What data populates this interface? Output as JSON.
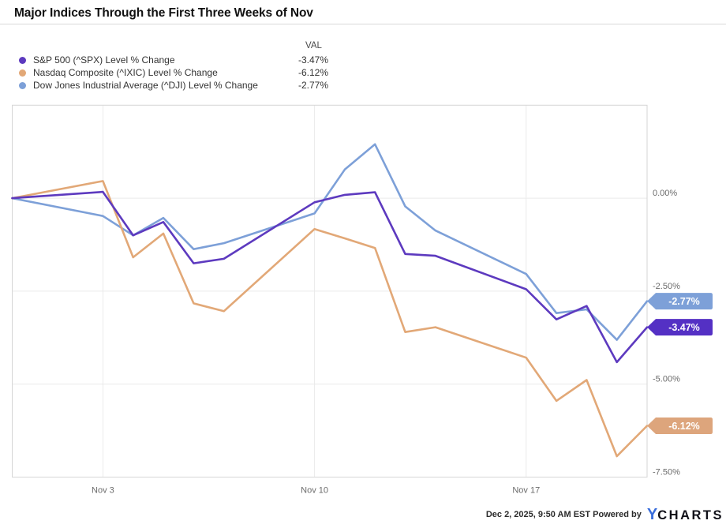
{
  "title": "Major Indices Through the First Three Weeks of Nov",
  "legend": {
    "val_header": "VAL"
  },
  "footer": {
    "text": "Dec 2, 2025, 9:50 AM EST Powered by",
    "logo_y": "Y",
    "logo_charts": "CHARTS"
  },
  "colors": {
    "gridline": "#eaeaea",
    "plot_border": "#d6d6d6",
    "tick_label": "#6b6b6b",
    "spx_purple": "#5d3abf",
    "ixic_orange": "#e2a877",
    "dji_blue": "#7da0d8"
  },
  "chart_data": {
    "type": "line",
    "title": "Major Indices Through the First Three Weeks of Nov",
    "x": [
      "Oct 31",
      "Nov 3",
      "Nov 4",
      "Nov 5",
      "Nov 6",
      "Nov 7",
      "Nov 10",
      "Nov 11",
      "Nov 12",
      "Nov 13",
      "Nov 14",
      "Nov 17",
      "Nov 18",
      "Nov 19",
      "Nov 20",
      "Nov 21"
    ],
    "day_offsets": [
      0,
      3,
      4,
      5,
      6,
      7,
      10,
      11,
      12,
      13,
      14,
      17,
      18,
      19,
      20,
      21
    ],
    "ylabel": "Level % Change",
    "ylim": [
      -7.5,
      2.5
    ],
    "grid": true,
    "legend_position": "top-left",
    "y_ticks": [
      {
        "label": "0.00%",
        "value": 0
      },
      {
        "label": "-2.50%",
        "value": -2.5
      },
      {
        "label": "-5.00%",
        "value": -5
      },
      {
        "label": "-7.50%",
        "value": -7.5
      }
    ],
    "x_ticks": [
      {
        "label": "Nov 3",
        "day": 3
      },
      {
        "label": "Nov 10",
        "day": 10
      },
      {
        "label": "Nov 17",
        "day": 17
      }
    ],
    "series": [
      {
        "id": "spx",
        "name": "S&P 500 (^SPX) Level % Change",
        "color": "#5d3abf",
        "badge_color": "#5430c4",
        "badge": "-3.47%",
        "values": [
          0,
          0.17,
          -1.0,
          -0.64,
          -1.75,
          -1.63,
          -0.11,
          0.09,
          0.16,
          -1.5,
          -1.55,
          -2.45,
          -3.26,
          -2.9,
          -4.41,
          -3.47
        ]
      },
      {
        "id": "ixic",
        "name": "Nasdaq Composite (^IXIC) Level % Change",
        "color": "#e2a877",
        "badge_color": "#dda57c",
        "badge": "-6.12%",
        "values": [
          0,
          0.46,
          -1.59,
          -0.95,
          -2.83,
          -3.04,
          -0.83,
          -1.08,
          -1.34,
          -3.6,
          -3.47,
          -4.29,
          -5.45,
          -4.89,
          -6.94,
          -6.12
        ]
      },
      {
        "id": "dji",
        "name": "Dow Jones Industrial Average (^DJI) Level % Change",
        "color": "#7da0d8",
        "badge_color": "#7da0d8",
        "badge": "-2.77%",
        "values": [
          0,
          -0.48,
          -1.0,
          -0.53,
          -1.37,
          -1.21,
          -0.41,
          0.77,
          1.45,
          -0.22,
          -0.87,
          -2.04,
          -3.09,
          -2.99,
          -3.81,
          -2.77
        ]
      }
    ]
  }
}
